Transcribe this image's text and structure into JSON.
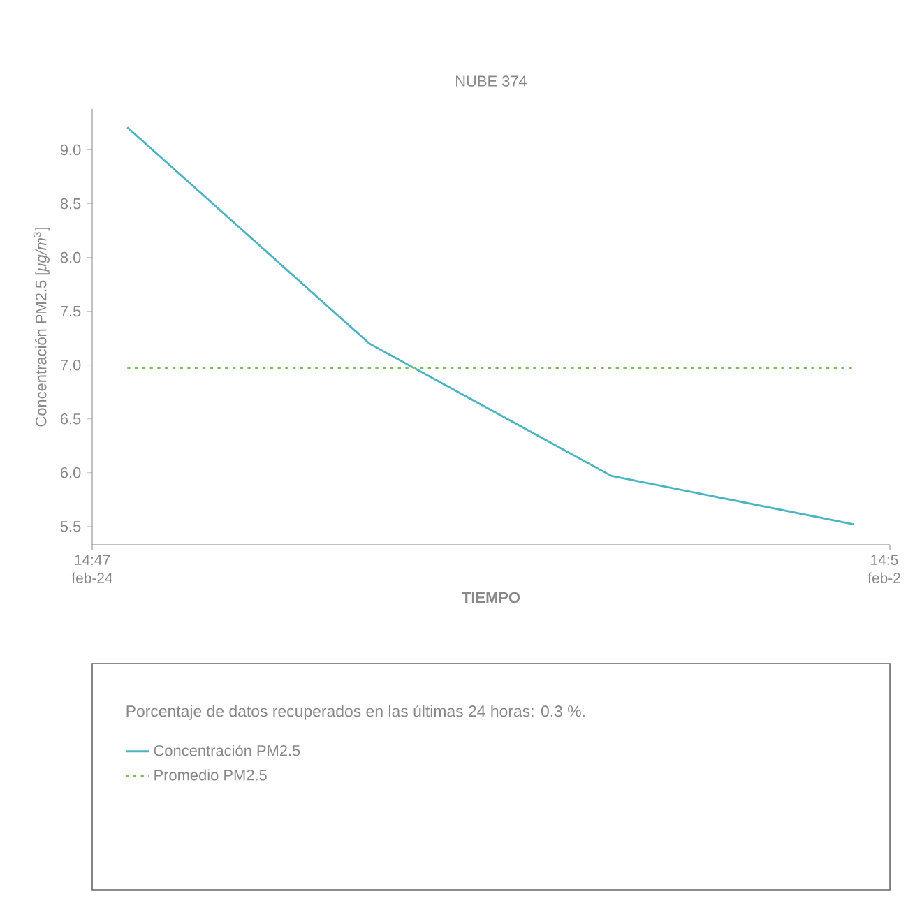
{
  "chart_data": {
    "type": "line",
    "title": "NUBE 374",
    "xlabel": "TIEMPO",
    "ylabel": "Concentración PM2.5 [*μg/m*$^{3}$]",
    "annotations": [
      "Porcentaje de datos recuperados en las últimas 24 horas: 0.3 %.",
      "14:47 feb-24",
      "14:5 feb-2"
    ],
    "categories": [
      null,
      null,
      null,
      null
    ],
    "series": [
      {
        "name": "Concentración PM2.5",
        "color": "#4bb4c2",
        "line_style": "solid",
        "values": [
          9.21,
          7.2,
          5.97,
          5.52
        ]
      },
      {
        "name": "Promedio PM2.5",
        "color": "#7cbf5e",
        "line_style": "dotted",
        "values": [
          6.97,
          6.97,
          6.97,
          6.97
        ]
      }
    ],
    "ylim": [
      5.33,
      9.38
    ],
    "yticks": [
      {
        "value": 5.5,
        "label": "5.5"
      },
      {
        "value": 6.0,
        "label": "6.0"
      },
      {
        "value": 6.5,
        "label": "6.5"
      },
      {
        "value": 7.0,
        "label": "7.0"
      },
      {
        "value": 7.5,
        "label": "7.5"
      },
      {
        "value": 8.0,
        "label": "8.0"
      },
      {
        "value": 8.5,
        "label": "8.5"
      },
      {
        "value": 9.0,
        "label": "9.0"
      }
    ],
    "legend": "bottom",
    "marker": "none"
  }
}
